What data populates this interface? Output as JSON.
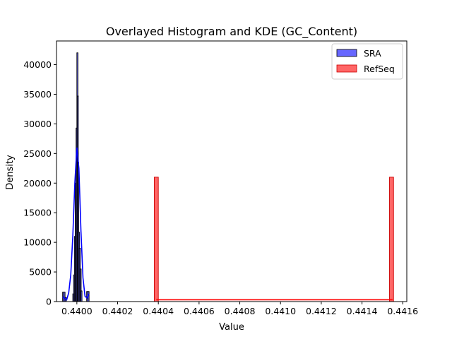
{
  "chart_data": {
    "type": "bar",
    "title": "Overlayed Histogram and KDE (GC_Content)",
    "xlabel": "Value",
    "ylabel": "Density",
    "xlim": [
      0.4399,
      0.44162
    ],
    "ylim": [
      0,
      44000
    ],
    "xticks": [
      0.44,
      0.4402,
      0.4404,
      0.4406,
      0.4408,
      0.441,
      0.4412,
      0.4414,
      0.4416
    ],
    "xtick_labels": [
      "0.4400",
      "0.4402",
      "0.4404",
      "0.4406",
      "0.4408",
      "0.4410",
      "0.4412",
      "0.4414",
      "0.4416"
    ],
    "yticks": [
      0,
      5000,
      10000,
      15000,
      20000,
      25000,
      30000,
      35000,
      40000
    ],
    "ytick_labels": [
      "0",
      "5000",
      "10000",
      "15000",
      "20000",
      "25000",
      "30000",
      "35000",
      "40000"
    ],
    "legend_position": "top-right",
    "series": [
      {
        "name": "SRA",
        "color": "#6666ff",
        "edge": "#000000",
        "kde_color": "#0000ff",
        "bins": [
          {
            "x0": 0.43993,
            "x1": 0.439936,
            "y": 1600
          },
          {
            "x0": 0.439936,
            "x1": 0.439942,
            "y": 1600
          },
          {
            "x0": 0.439942,
            "x1": 0.439948,
            "y": 700
          },
          {
            "x0": 0.43998,
            "x1": 0.439984,
            "y": 1300
          },
          {
            "x0": 0.439984,
            "x1": 0.439988,
            "y": 4500
          },
          {
            "x0": 0.439988,
            "x1": 0.439992,
            "y": 11000
          },
          {
            "x0": 0.439992,
            "x1": 0.439996,
            "y": 20000
          },
          {
            "x0": 0.439996,
            "x1": 0.44,
            "y": 29300
          },
          {
            "x0": 0.44,
            "x1": 0.440002,
            "y": 42000
          },
          {
            "x0": 0.440002,
            "x1": 0.440004,
            "y": 34700
          },
          {
            "x0": 0.440004,
            "x1": 0.440008,
            "y": 23500
          },
          {
            "x0": 0.440008,
            "x1": 0.440012,
            "y": 11700
          },
          {
            "x0": 0.440012,
            "x1": 0.440016,
            "y": 9000
          },
          {
            "x0": 0.440016,
            "x1": 0.44002,
            "y": 5500
          },
          {
            "x0": 0.44002,
            "x1": 0.440024,
            "y": 1800
          },
          {
            "x0": 0.440048,
            "x1": 0.440054,
            "y": 1700
          },
          {
            "x0": 0.440054,
            "x1": 0.44006,
            "y": 1700
          }
        ],
        "kde": [
          [
            0.43993,
            800
          ],
          [
            0.43995,
            300
          ],
          [
            0.43996,
            1500
          ],
          [
            0.43997,
            4500
          ],
          [
            0.43998,
            11000
          ],
          [
            0.43999,
            20000
          ],
          [
            0.43999,
            20000
          ],
          [
            0.44,
            26000
          ],
          [
            0.44001,
            22500
          ],
          [
            0.44002,
            12000
          ],
          [
            0.44003,
            4000
          ],
          [
            0.44004,
            900
          ],
          [
            0.44005,
            600
          ],
          [
            0.44006,
            1300
          ]
        ]
      },
      {
        "name": "RefSeq",
        "color": "#ff6666",
        "edge": "#cc0000",
        "kde_color": "#ff0000",
        "bins": [
          {
            "x0": 0.44038,
            "x1": 0.4404,
            "y": 21000
          },
          {
            "x0": 0.441535,
            "x1": 0.441555,
            "y": 21000
          }
        ],
        "kde": [
          [
            0.44039,
            300
          ],
          [
            0.44155,
            300
          ]
        ]
      }
    ]
  }
}
